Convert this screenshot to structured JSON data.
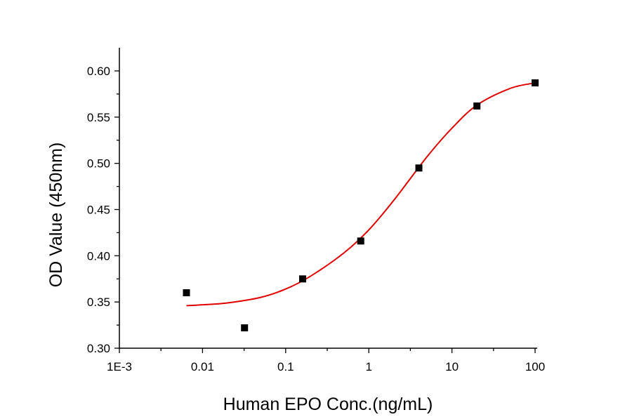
{
  "chart_data": {
    "type": "scatter",
    "title": "",
    "xlabel": "Human EPO Conc.(ng/mL)",
    "ylabel": "OD Value (450nm)",
    "x_scale": "log",
    "xlim": [
      0.001,
      100
    ],
    "ylim": [
      0.3,
      0.62
    ],
    "x_ticks": [
      0.001,
      0.01,
      0.1,
      1,
      10,
      100
    ],
    "x_tick_labels": [
      "1E-3",
      "0.01",
      "0.1",
      "1",
      "10",
      "100"
    ],
    "y_ticks": [
      0.3,
      0.35,
      0.4,
      0.45,
      0.5,
      0.55,
      0.6
    ],
    "y_tick_labels": [
      "0.30",
      "0.35",
      "0.40",
      "0.45",
      "0.50",
      "0.55",
      "0.60"
    ],
    "grid": false,
    "series": [
      {
        "type": "scatter",
        "color": "#000000",
        "marker": "square",
        "x": [
          0.0064,
          0.032,
          0.16,
          0.8,
          4,
          20,
          100
        ],
        "y": [
          0.36,
          0.322,
          0.375,
          0.416,
          0.495,
          0.562,
          0.587
        ]
      },
      {
        "type": "line",
        "color": "#e00000",
        "fit": "four-parameter logistic",
        "x": [
          0.0064,
          0.01,
          0.02,
          0.05,
          0.1,
          0.2,
          0.5,
          1,
          2,
          5,
          10,
          20,
          50,
          100
        ],
        "y": [
          0.346,
          0.347,
          0.349,
          0.355,
          0.364,
          0.378,
          0.403,
          0.428,
          0.46,
          0.507,
          0.538,
          0.563,
          0.581,
          0.587
        ]
      }
    ]
  }
}
